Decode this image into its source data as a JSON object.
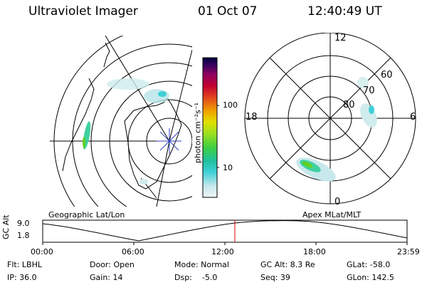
{
  "header": {
    "instrument": "Ultraviolet Imager",
    "date": "01 Oct 07",
    "time": "12:40:49 UT"
  },
  "colorbar": {
    "unit_label": "photon cm⁻²s⁻¹",
    "ticks": [
      "100",
      "10"
    ],
    "colors": [
      "#e8f4f4",
      "#c8e8ec",
      "#40d0d8",
      "#20c0a0",
      "#40d040",
      "#a0e020",
      "#e0e000",
      "#f0a000",
      "#e04020",
      "#c00030",
      "#a00050",
      "#400060",
      "#000040"
    ]
  },
  "geo_map": {
    "label": "Geographic Lat/Lon"
  },
  "polar_map": {
    "label": "Apex MLat/MLT",
    "mlt_labels": [
      "12",
      "18",
      "6",
      "0"
    ],
    "lat_labels": [
      "60",
      "70",
      "80"
    ]
  },
  "timeline": {
    "axis_label": "GC Alt",
    "y_ticks": [
      "9.0",
      "1.8"
    ],
    "x_ticks": [
      "00:00",
      "06:00",
      "12:00",
      "18:00",
      "23:59"
    ],
    "current_time_marker_color": "#e00000"
  },
  "footer": {
    "flt": "Flt: LBHL",
    "ip": "IP: 36.0",
    "door": "Door: Open",
    "gain": "Gain: 14",
    "mode": "Mode: Normal",
    "dsp": "Dsp:    -5.0",
    "gcalt": "GC Alt: 8.3 Re",
    "seq": "Seq: 39",
    "glat": "GLat: -58.0",
    "glon": "GLon: 142.5"
  }
}
